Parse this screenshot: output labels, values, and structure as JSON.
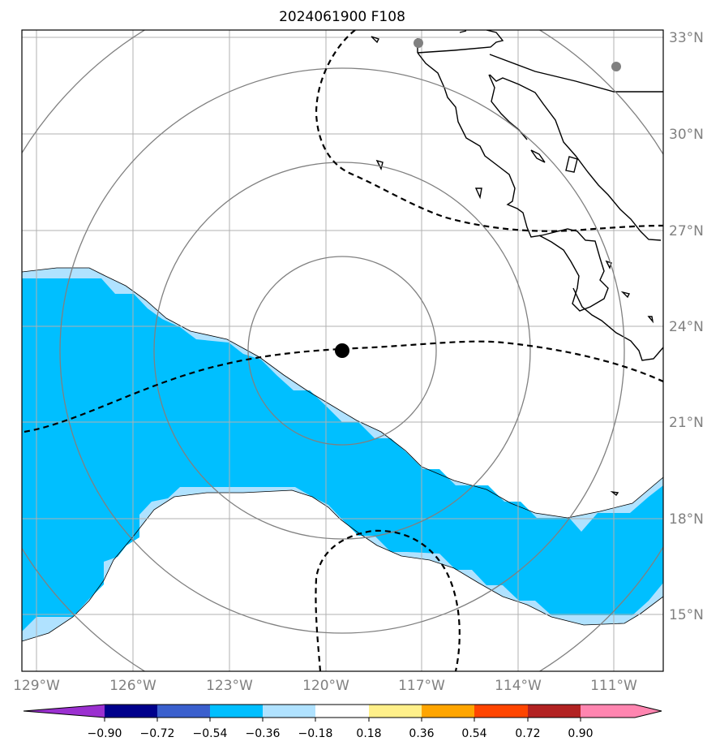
{
  "title": "2024061900 F108",
  "longitude_labels": [
    "129°W",
    "126°W",
    "123°W",
    "120°W",
    "117°W",
    "114°W",
    "111°W"
  ],
  "latitude_labels": [
    "33°N",
    "30°N",
    "27°N",
    "24°N",
    "21°N",
    "18°N",
    "15°N"
  ],
  "colorbar": {
    "tick_labels": [
      "−0.90",
      "−0.72",
      "−0.54",
      "−0.36",
      "−0.18",
      "0.18",
      "0.36",
      "0.54",
      "0.72",
      "0.90"
    ],
    "colors": [
      "#9b30d0",
      "#00008b",
      "#3a5fcd",
      "#00bfff",
      "#b0e2ff",
      "#ffffff",
      "#fff08a",
      "#ffa500",
      "#ff4500",
      "#b22222",
      "#ff85b0"
    ]
  },
  "map": {
    "ocean_fill_color": "#00bfff",
    "ocean_edge_color": "#b0e2ff",
    "center_marker_color": "#000000",
    "range_ring_color": "#808080",
    "grid_color": "#b0b0b0",
    "gray_point_color": "#808080"
  }
}
